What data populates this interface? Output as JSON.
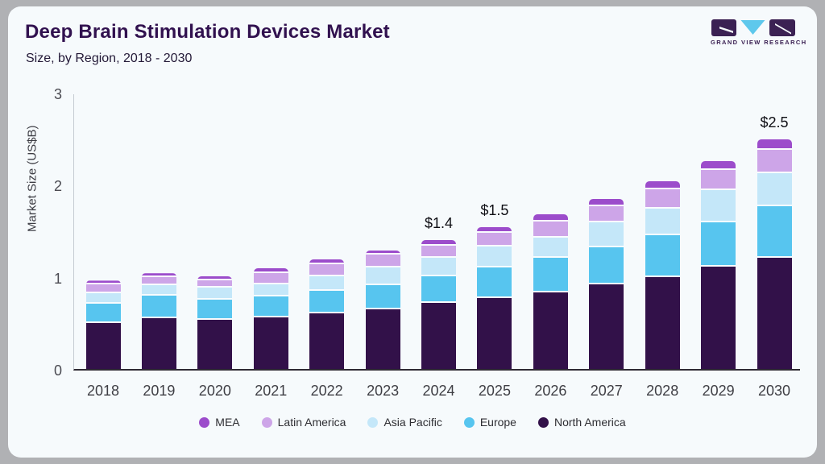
{
  "header": {
    "title": "Deep Brain Stimulation Devices Market",
    "subtitle": "Size, by Region, 2018 - 2030"
  },
  "logo": {
    "text": "GRAND VIEW RESEARCH",
    "block_color": "#3b2153",
    "triangle_color": "#5ec8ec"
  },
  "chart_data": {
    "type": "bar",
    "stacked": true,
    "title": "Deep Brain Stimulation Devices Market Size, by Region, 2018 - 2030",
    "ylabel": "Market Size (US$B)",
    "xlabel": "",
    "ylim": [
      0,
      3
    ],
    "yticks": [
      0,
      1,
      2,
      3
    ],
    "grid": false,
    "legend_position": "bottom",
    "categories": [
      "2018",
      "2019",
      "2020",
      "2021",
      "2022",
      "2023",
      "2024",
      "2025",
      "2026",
      "2027",
      "2028",
      "2029",
      "2030"
    ],
    "series": [
      {
        "name": "North America",
        "color": "#321149",
        "values": [
          0.5,
          0.55,
          0.53,
          0.56,
          0.6,
          0.65,
          0.72,
          0.77,
          0.83,
          0.92,
          1.0,
          1.11,
          1.21
        ]
      },
      {
        "name": "Europe",
        "color": "#57c5ef",
        "values": [
          0.21,
          0.25,
          0.22,
          0.23,
          0.25,
          0.26,
          0.29,
          0.33,
          0.38,
          0.4,
          0.45,
          0.48,
          0.56
        ]
      },
      {
        "name": "Asia Pacific",
        "color": "#c4e7f9",
        "values": [
          0.11,
          0.11,
          0.13,
          0.13,
          0.16,
          0.19,
          0.2,
          0.23,
          0.22,
          0.27,
          0.29,
          0.35,
          0.36
        ]
      },
      {
        "name": "Latin America",
        "color": "#cda5e8",
        "values": [
          0.1,
          0.09,
          0.08,
          0.12,
          0.13,
          0.14,
          0.13,
          0.15,
          0.17,
          0.18,
          0.21,
          0.22,
          0.25
        ]
      },
      {
        "name": "MEA",
        "color": "#9c4ccb",
        "values": [
          0.04,
          0.04,
          0.05,
          0.05,
          0.05,
          0.05,
          0.06,
          0.06,
          0.08,
          0.08,
          0.09,
          0.1,
          0.11
        ]
      }
    ],
    "bar_labels": {
      "2024": "$1.4",
      "2025": "$1.5",
      "2030": "$2.5"
    },
    "legend": [
      "MEA",
      "Latin America",
      "Asia Pacific",
      "Europe",
      "North America"
    ]
  }
}
